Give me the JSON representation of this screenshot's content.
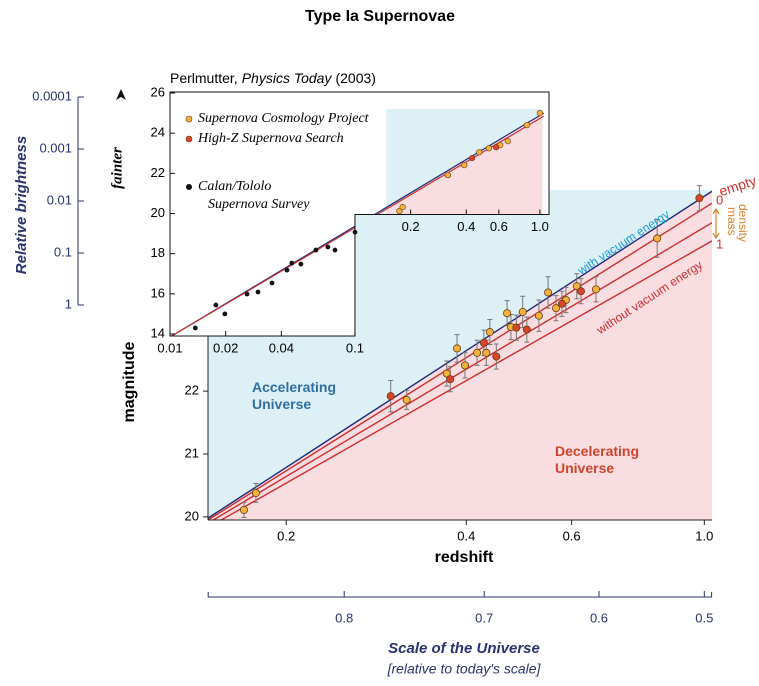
{
  "chart_data": [
    {
      "type": "scatter",
      "title": "Type Ia Supernovae",
      "xlabel": "redshift",
      "ylabel": "magnitude",
      "xscale": "log",
      "xlim": [
        0.148,
        1.03
      ],
      "ylim": [
        19.95,
        25.2
      ],
      "xticks": [
        0.2,
        0.4,
        0.6,
        {
          "value": 1,
          "label": "1.0"
        }
      ],
      "yticks": [
        20,
        21,
        22
      ],
      "series": [
        {
          "color": "#f2b33d",
          "x": [
            0.17,
            0.178,
            0.318,
            0.371,
            0.386,
            0.398,
            0.417,
            0.432,
            0.438,
            0.468,
            0.475,
            0.497,
            0.529,
            0.548,
            0.565,
            0.587,
            0.612,
            0.659,
            0.834
          ],
          "values": [
            20.11,
            20.38,
            21.86,
            22.28,
            22.68,
            22.41,
            22.61,
            22.61,
            22.94,
            23.24,
            23.02,
            23.26,
            23.2,
            23.57,
            23.32,
            23.45,
            23.67,
            23.62,
            24.43
          ],
          "errors": [
            0.12,
            0.15,
            0.15,
            0.2,
            0.22,
            0.2,
            0.2,
            0.2,
            0.2,
            0.2,
            0.2,
            0.25,
            0.25,
            0.25,
            0.2,
            0.2,
            0.2,
            0.2,
            0.3
          ]
        },
        {
          "color": "#d9452b",
          "x": [
            0.299,
            0.376,
            0.428,
            0.449,
            0.485,
            0.505,
            0.578,
            0.622,
            0.981
          ],
          "values": [
            21.92,
            22.19,
            22.77,
            22.55,
            23.01,
            22.98,
            23.39,
            23.59,
            25.07
          ],
          "errors": [
            0.25,
            0.2,
            0.2,
            0.2,
            0.2,
            0.2,
            0.2,
            0.2,
            0.2
          ]
        }
      ],
      "lines": [
        {
          "label": "with vacuum energy",
          "color": "#1e2a78",
          "x": [
            0.148,
            1.03
          ],
          "values": [
            19.98,
            25.18
          ]
        },
        {
          "label": "0",
          "color": "#cf2e2e",
          "x": [
            0.148,
            1.03
          ],
          "values": [
            19.95,
            24.99
          ]
        },
        {
          "color": "#cf2e2e",
          "x": [
            0.148,
            1.03
          ],
          "values": [
            19.9,
            24.68
          ]
        },
        {
          "label": "1",
          "color": "#cf2e2e",
          "x": [
            0.148,
            1.03
          ],
          "values": [
            19.83,
            24.39
          ]
        }
      ],
      "annotations": [
        "without vacuum energy",
        "Accelerating Universe",
        "Decelerating Universe",
        "empty",
        "mass density"
      ],
      "brightness_axis": {
        "label": "Relative brightness",
        "yscale": "log",
        "ylim": [
          1,
          0.0001
        ],
        "yticks": [
          0.0001,
          0.001,
          0.01,
          0.1,
          1
        ]
      },
      "scale_axis": {
        "label": "Scale of the Universe",
        "sublabel": "[relative to today's scale]",
        "xlim": [
          0.871,
          0.493
        ],
        "xticks": [
          0.8,
          0.7,
          0.6,
          0.5
        ]
      }
    },
    {
      "type": "scatter",
      "ylabel": "fainter",
      "xscale": "log",
      "source": {
        "author": "Perlmutter,",
        "journal": "Physics Today",
        "year": "(2003)"
      },
      "xlim": [
        0.01,
        1.12
      ],
      "ylim": [
        13.9,
        26.05
      ],
      "xticks": [
        0.01,
        0.02,
        0.04,
        0.1,
        0.2,
        0.4,
        0.6,
        {
          "value": 1,
          "label": "1.0"
        }
      ],
      "yticks": [
        14,
        16,
        18,
        20,
        22,
        24,
        26
      ],
      "series": [
        {
          "name": "Supernova Cosmology Project",
          "color": "#f2b33d",
          "x": [
            0.174,
            0.181,
            0.318,
            0.39,
            0.47,
            0.53,
            0.61,
            0.67,
            0.85,
            1.0
          ],
          "values": [
            20.12,
            20.32,
            21.91,
            22.41,
            23.05,
            23.25,
            23.4,
            23.6,
            24.4,
            25.0
          ]
        },
        {
          "name": "High-Z Supernova Search",
          "color": "#d9452b",
          "x": [
            0.43,
            0.58
          ],
          "values": [
            22.76,
            23.3
          ]
        },
        {
          "name": "Calan/Tololo Supernova Survey",
          "color": "#111111",
          "x": [
            0.0137,
            0.0177,
            0.0198,
            0.0261,
            0.0299,
            0.0356,
            0.0429,
            0.0456,
            0.051,
            0.0615,
            0.0714,
            0.078,
            0.1
          ],
          "values": [
            14.3,
            15.44,
            15.0,
            15.99,
            16.09,
            16.54,
            17.18,
            17.53,
            17.48,
            18.18,
            18.33,
            18.18,
            19.07
          ]
        }
      ],
      "lines": [
        {
          "color": "#1e2a78",
          "x": [
            0.01,
            1.05
          ],
          "values": [
            13.85,
            25.0
          ]
        },
        {
          "color": "#cf2e2e",
          "x": [
            0.01,
            1.05
          ],
          "values": [
            13.85,
            24.85
          ]
        }
      ]
    }
  ]
}
